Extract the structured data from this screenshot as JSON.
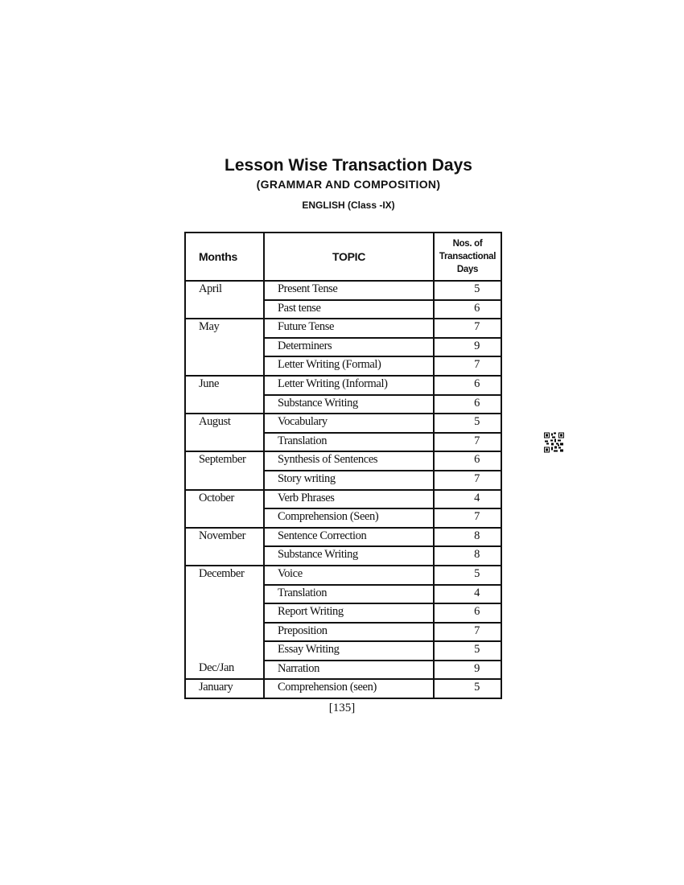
{
  "title": "Lesson Wise Transaction Days",
  "subtitle": "(GRAMMAR AND COMPOSITION)",
  "subject": "ENGLISH (Class -IX)",
  "table": {
    "headers": {
      "months": "Months",
      "topic": "TOPIC",
      "days_line1": "Nos. of",
      "days_line2": "Transactional",
      "days_line3": "Days"
    },
    "groups": [
      {
        "rows": [
          {
            "month": "April",
            "topic": "Present Tense",
            "days": "5"
          },
          {
            "month": "",
            "topic": "Past tense",
            "days": "6"
          }
        ]
      },
      {
        "rows": [
          {
            "month": "May",
            "topic": "Future Tense",
            "days": "7"
          },
          {
            "month": "",
            "topic": "Determiners",
            "days": "9"
          },
          {
            "month": "",
            "topic": "Letter Writing (Formal)",
            "days": "7"
          }
        ]
      },
      {
        "rows": [
          {
            "month": "June",
            "topic": "Letter Writing (Informal)",
            "days": "6"
          },
          {
            "month": "",
            "topic": "Substance Writing",
            "days": "6"
          }
        ]
      },
      {
        "rows": [
          {
            "month": "August",
            "topic": "Vocabulary",
            "days": "5"
          },
          {
            "month": "",
            "topic": "Translation",
            "days": "7"
          }
        ]
      },
      {
        "rows": [
          {
            "month": "September",
            "topic": "Synthesis of Sentences",
            "days": "6"
          },
          {
            "month": "",
            "topic": "Story writing",
            "days": "7"
          }
        ]
      },
      {
        "rows": [
          {
            "month": "October",
            "topic": "Verb Phrases",
            "days": "4"
          },
          {
            "month": "",
            "topic": "Comprehension (Seen)",
            "days": "7"
          }
        ]
      },
      {
        "rows": [
          {
            "month": "November",
            "topic": "Sentence Correction",
            "days": "8"
          },
          {
            "month": "",
            "topic": "Substance Writing",
            "days": "8"
          }
        ]
      },
      {
        "rows": [
          {
            "month": "December",
            "topic": "Voice",
            "days": "5"
          },
          {
            "month": "",
            "topic": "Translation",
            "days": "4"
          },
          {
            "month": "",
            "topic": "Report Writing",
            "days": "6"
          },
          {
            "month": "",
            "topic": "Preposition",
            "days": "7"
          },
          {
            "month": "",
            "topic": "Essay Writing",
            "days": "5"
          },
          {
            "month": "Dec/Jan",
            "topic": "Narration",
            "days": "9"
          }
        ]
      },
      {
        "rows": [
          {
            "month": "January",
            "topic": "Comprehension (seen)",
            "days": "5"
          }
        ]
      }
    ]
  },
  "page_number": "[135]",
  "qr_icon": "qr-code-icon"
}
